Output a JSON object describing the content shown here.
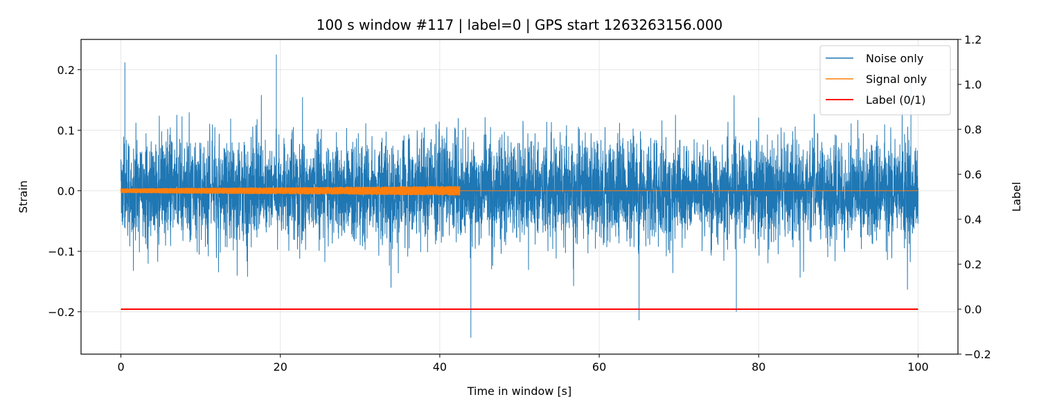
{
  "chart_data": {
    "type": "line",
    "title": "100 s window #117 | label=0 | GPS start 1263263156.000",
    "xlabel": "Time in window [s]",
    "ylabel": "Strain",
    "y2label": "Label",
    "xlim": [
      -5,
      105
    ],
    "ylim": [
      -0.27,
      0.25
    ],
    "y2lim": [
      -0.2,
      1.2
    ],
    "xticks": [
      0,
      20,
      40,
      60,
      80,
      100
    ],
    "xtick_labels": [
      "0",
      "20",
      "40",
      "60",
      "80",
      "100"
    ],
    "yticks": [
      -0.2,
      -0.1,
      0.0,
      0.1,
      0.2
    ],
    "ytick_labels": [
      "−0.2",
      "−0.1",
      "0.0",
      "0.1",
      "0.2"
    ],
    "y2ticks": [
      -0.2,
      0.0,
      0.2,
      0.4,
      0.6,
      0.8,
      1.0,
      1.2
    ],
    "y2tick_labels": [
      "−0.2",
      "0.0",
      "0.2",
      "0.4",
      "0.6",
      "0.8",
      "1.0",
      "1.2"
    ],
    "grid": true,
    "legend_position": "top-right",
    "series": [
      {
        "name": "Noise only",
        "color": "#1f77b4",
        "axis": "left",
        "x_range": [
          0,
          100
        ],
        "typical_amplitude": 0.1,
        "max": 0.225,
        "min": -0.243
      },
      {
        "name": "Signal only",
        "color": "#ff7f0e",
        "axis": "left",
        "x_range": [
          0,
          100
        ],
        "active_until": 42.5,
        "amplitude_start": 0.004,
        "amplitude_end": 0.008,
        "after": 0.0
      },
      {
        "name": "Label (0/1)",
        "color": "#ff0000",
        "axis": "right",
        "x": [
          0,
          100
        ],
        "values": [
          0,
          0
        ]
      }
    ]
  }
}
